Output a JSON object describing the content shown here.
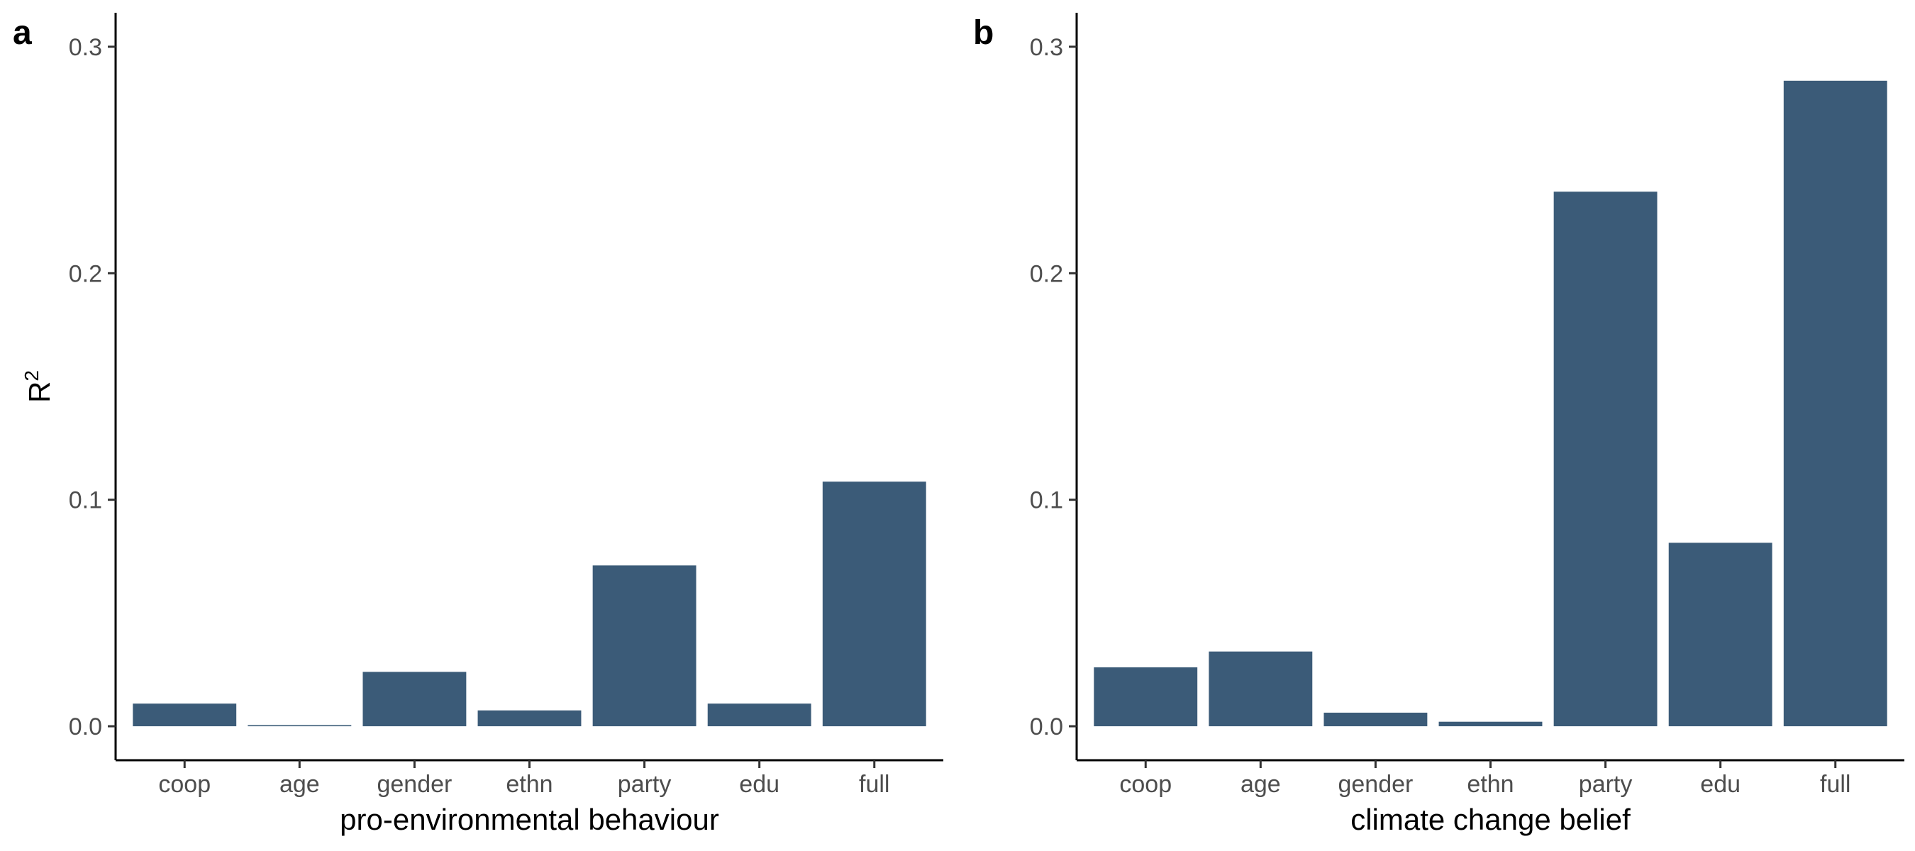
{
  "chart_data": [
    {
      "type": "bar",
      "panel_label": "a",
      "categories": [
        "coop",
        "age",
        "gender",
        "ethn",
        "party",
        "edu",
        "full"
      ],
      "values": [
        0.01,
        0.0005,
        0.024,
        0.007,
        0.071,
        0.01,
        0.108
      ],
      "xlabel": "pro-environmental behaviour",
      "ylabel_main": "R",
      "ylabel_sup": "2",
      "yticks": [
        0.0,
        0.1,
        0.2,
        0.3
      ],
      "ytick_labels": [
        "0.0",
        "0.1",
        "0.2",
        "0.3"
      ],
      "ylim": [
        -0.015,
        0.315
      ],
      "bar_color": "#3b5b78",
      "grid": false,
      "legend": "none"
    },
    {
      "type": "bar",
      "panel_label": "b",
      "categories": [
        "coop",
        "age",
        "gender",
        "ethn",
        "party",
        "edu",
        "full"
      ],
      "values": [
        0.026,
        0.033,
        0.006,
        0.002,
        0.236,
        0.081,
        0.285
      ],
      "xlabel": "climate change belief",
      "ylabel_main": "",
      "ylabel_sup": "",
      "yticks": [
        0.0,
        0.1,
        0.2,
        0.3
      ],
      "ytick_labels": [
        "0.0",
        "0.1",
        "0.2",
        "0.3"
      ],
      "ylim": [
        -0.015,
        0.315
      ],
      "bar_color": "#3b5b78",
      "grid": false,
      "legend": "none"
    }
  ]
}
